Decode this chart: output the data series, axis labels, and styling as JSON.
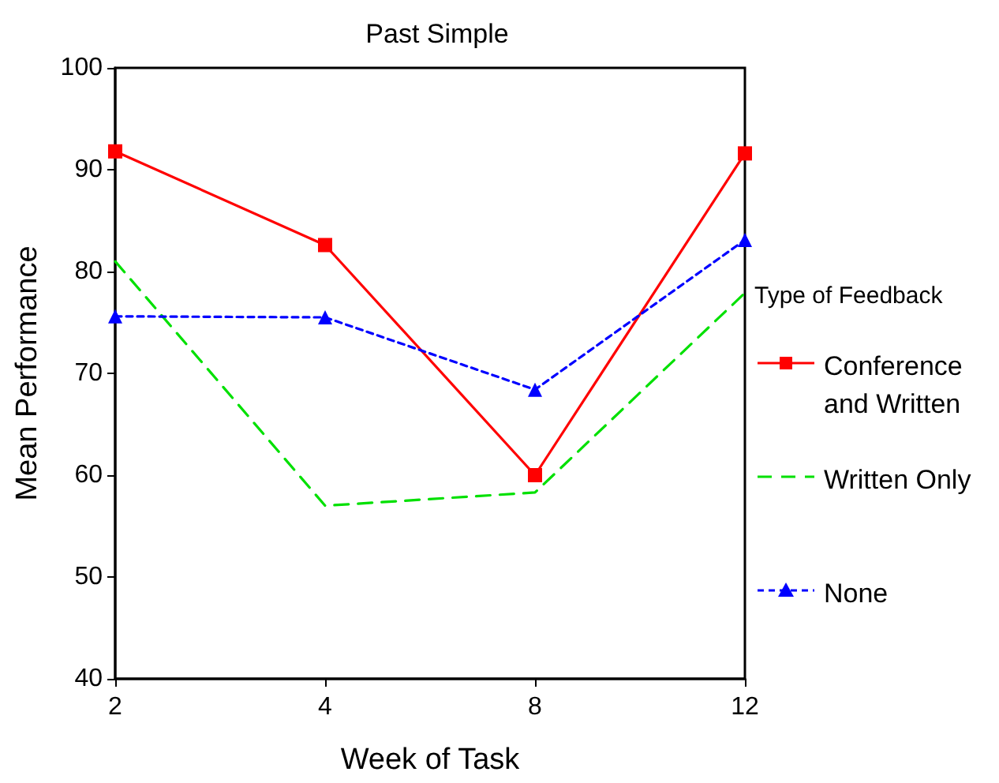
{
  "chart_data": {
    "type": "line",
    "title": "Past Simple",
    "xlabel": "Week of Task",
    "ylabel": "Mean Performance",
    "legend_title": "Type of Feedback",
    "categories": [
      "2",
      "4",
      "8",
      "12"
    ],
    "series": [
      {
        "name": "Conference and Written",
        "color": "#ff0000",
        "values": [
          91.8,
          82.6,
          60.0,
          91.6
        ],
        "marker": "square",
        "line_style": "solid"
      },
      {
        "name": "Written Only",
        "color": "#00e000",
        "values": [
          81.0,
          57.0,
          58.3,
          77.9
        ],
        "marker": "none",
        "line_style": "dashed"
      },
      {
        "name": "None",
        "color": "#0000ff",
        "values": [
          75.6,
          75.5,
          68.4,
          83.1
        ],
        "marker": "triangle",
        "line_style": "dotted"
      }
    ],
    "ylim": [
      40,
      100
    ],
    "yticks": [
      40,
      50,
      60,
      70,
      80,
      90,
      100
    ],
    "grid": false,
    "legend": "right"
  }
}
